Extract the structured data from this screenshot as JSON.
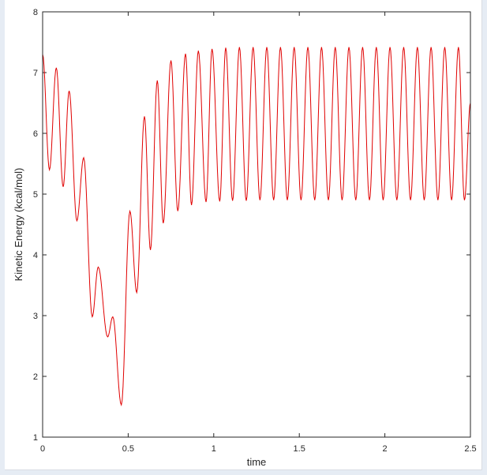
{
  "chart_data": {
    "type": "line",
    "title": "",
    "xlabel": "time",
    "ylabel": "Kinetic Energy (kcal/mol)",
    "xlim": [
      0,
      2.5
    ],
    "ylim": [
      1,
      8
    ],
    "x_ticks": [
      0,
      0.5,
      1,
      1.5,
      2,
      2.5
    ],
    "x_tick_labels": [
      "0",
      "0.5",
      "1",
      "1.5",
      "2",
      "2.5"
    ],
    "y_ticks": [
      1,
      2,
      3,
      4,
      5,
      6,
      7,
      8
    ],
    "y_tick_labels": [
      "1",
      "2",
      "3",
      "4",
      "5",
      "6",
      "7",
      "8"
    ],
    "grid": false,
    "line_color": "#e00000",
    "series": [
      {
        "name": "",
        "x": [
          0.0,
          0.04,
          0.08,
          0.12,
          0.155,
          0.2,
          0.24,
          0.29,
          0.325,
          0.38,
          0.41,
          0.46,
          0.51,
          0.55,
          0.595,
          0.63,
          0.67,
          0.705,
          0.75,
          0.79,
          0.835,
          0.87,
          0.91,
          0.955,
          0.99,
          1.035,
          1.07,
          1.11,
          1.15,
          1.19,
          1.23,
          1.27,
          1.31,
          1.35,
          1.39,
          1.43,
          1.47,
          1.51,
          1.55,
          1.59,
          1.63,
          1.67,
          1.71,
          1.75,
          1.79,
          1.83,
          1.87,
          1.91,
          1.95,
          1.99,
          2.03,
          2.07,
          2.11,
          2.15,
          2.19,
          2.23,
          2.27,
          2.31,
          2.35,
          2.39,
          2.43,
          2.465,
          2.5
        ],
        "y": [
          7.3,
          5.4,
          7.08,
          5.12,
          6.7,
          4.56,
          5.6,
          2.98,
          3.8,
          2.65,
          2.98,
          1.53,
          4.72,
          3.38,
          6.28,
          4.08,
          6.87,
          4.52,
          7.2,
          4.72,
          7.31,
          4.82,
          7.36,
          4.87,
          7.39,
          4.88,
          7.41,
          4.89,
          7.42,
          4.89,
          7.42,
          4.9,
          7.42,
          4.9,
          7.42,
          4.9,
          7.42,
          4.9,
          7.42,
          4.9,
          7.42,
          4.9,
          7.42,
          4.9,
          7.42,
          4.9,
          7.42,
          4.9,
          7.42,
          4.9,
          7.42,
          4.9,
          7.42,
          4.9,
          7.42,
          4.9,
          7.42,
          4.9,
          7.42,
          4.9,
          7.42,
          4.9,
          6.5
        ]
      }
    ]
  }
}
